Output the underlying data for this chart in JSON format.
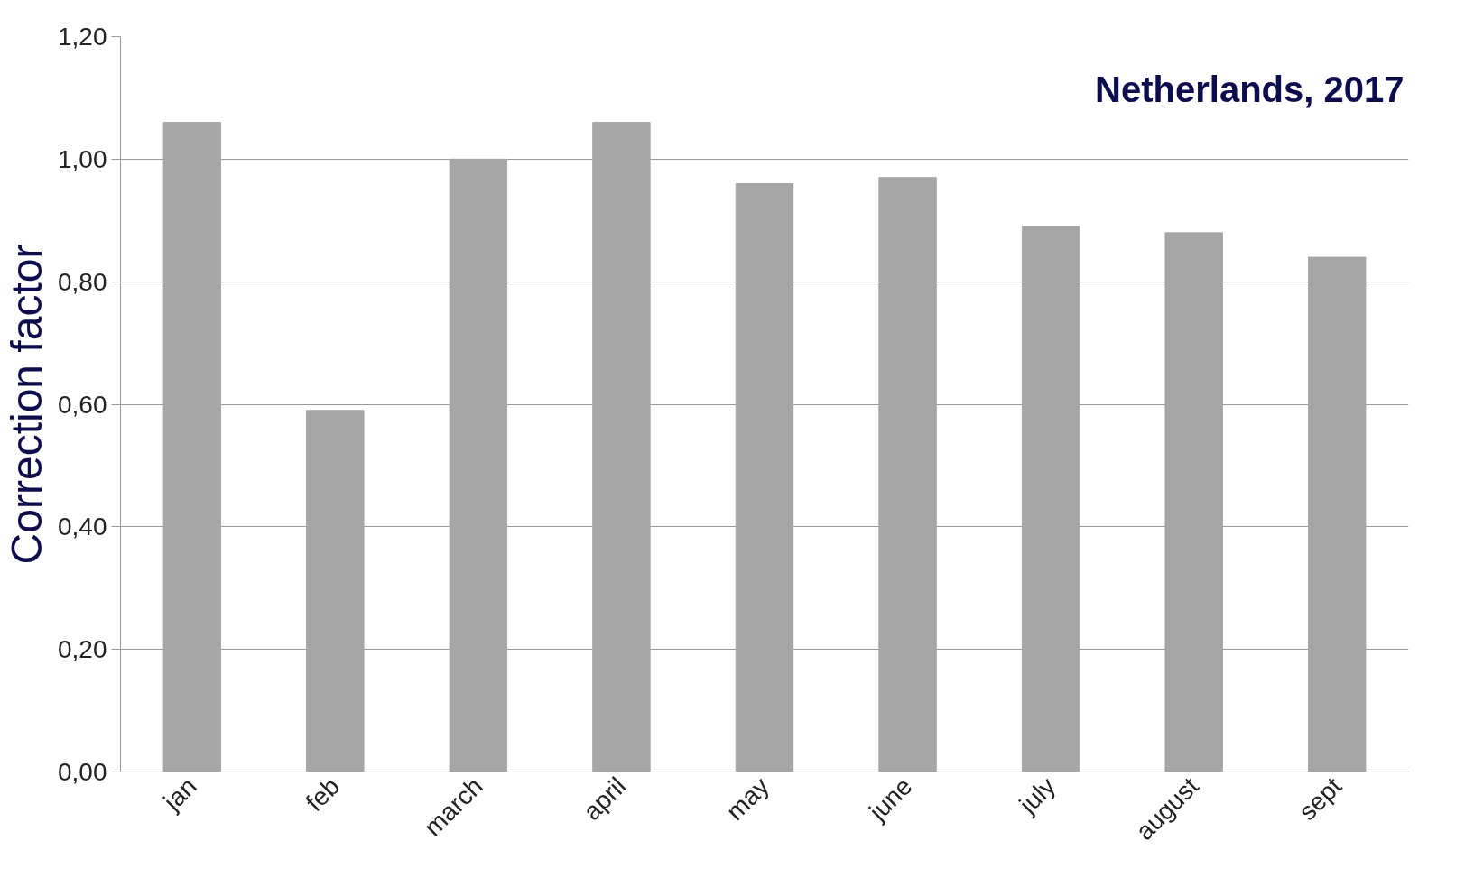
{
  "chart_data": {
    "type": "bar",
    "ylabel": "Correction factor",
    "annotations": [
      "Netherlands, 2017"
    ],
    "categories": [
      "jan",
      "feb",
      "march",
      "april",
      "may",
      "june",
      "july",
      "august",
      "sept"
    ],
    "values": [
      1.06,
      0.59,
      1.0,
      1.06,
      0.96,
      0.97,
      0.89,
      0.88,
      0.84
    ],
    "color": "#a6a6a6",
    "ylim": [
      0,
      1.2
    ],
    "yticks": [
      {
        "value": 0,
        "label": "0,00"
      },
      {
        "value": 0.2,
        "label": "0,20"
      },
      {
        "value": 0.4,
        "label": "0,40"
      },
      {
        "value": 0.6,
        "label": "0,60"
      },
      {
        "value": 0.8,
        "label": "0,80"
      },
      {
        "value": 1.0,
        "label": "1,00"
      },
      {
        "value": 1.2,
        "label": "1,20"
      }
    ],
    "grid": "y"
  }
}
